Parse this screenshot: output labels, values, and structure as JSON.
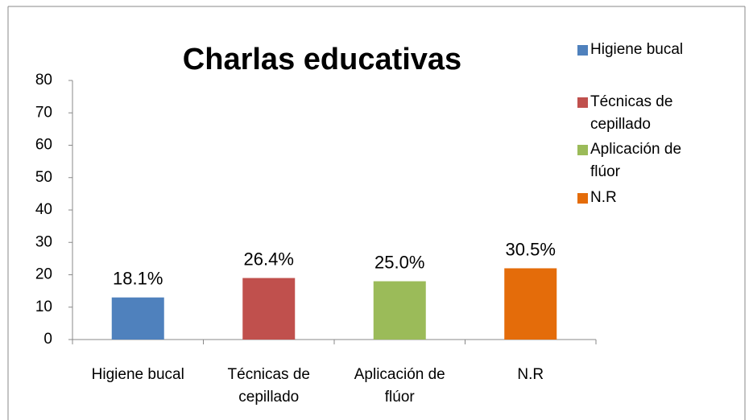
{
  "chart_data": {
    "type": "bar",
    "title": "Charlas educativas",
    "categories": [
      "Higiene bucal",
      "Técnicas de cepillado",
      "Aplicación de flúor",
      "N.R"
    ],
    "values": [
      13,
      19,
      18,
      22
    ],
    "value_labels": [
      "18.1%",
      "26.4%",
      "25.0%",
      "30.5%"
    ],
    "colors": [
      "#4f81bd",
      "#c0504d",
      "#9bbb59",
      "#e46c0a"
    ],
    "ylim": [
      0,
      80
    ],
    "yticks": [
      0,
      10,
      20,
      30,
      40,
      50,
      60,
      70,
      80
    ],
    "grid": false,
    "legend": "right"
  }
}
